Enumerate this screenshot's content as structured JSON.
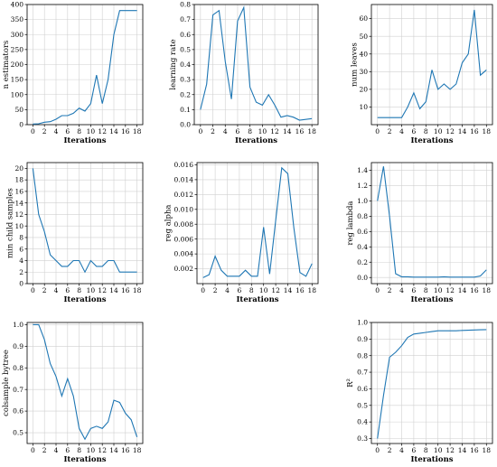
{
  "chart_data": [
    {
      "type": "line",
      "xlabel": "Iterations",
      "ylabel": "n estimators",
      "xlim": [
        -1,
        19
      ],
      "ylim": [
        0,
        400
      ],
      "xticks": [
        0,
        2,
        4,
        6,
        8,
        10,
        12,
        14,
        16,
        18
      ],
      "yticks": [
        0,
        50,
        100,
        150,
        200,
        250,
        300,
        350,
        400
      ],
      "x": [
        0,
        1,
        2,
        3,
        4,
        5,
        6,
        7,
        8,
        9,
        10,
        11,
        12,
        13,
        14,
        15,
        16,
        17,
        18
      ],
      "y": [
        2,
        3,
        8,
        10,
        18,
        30,
        30,
        38,
        55,
        45,
        70,
        165,
        70,
        150,
        300,
        380,
        380,
        380,
        380
      ],
      "grid": true
    },
    {
      "type": "line",
      "xlabel": "Iterations",
      "ylabel": "learning rate",
      "xlim": [
        -1,
        19
      ],
      "ylim": [
        0,
        0.8
      ],
      "xticks": [
        0,
        2,
        4,
        6,
        8,
        10,
        12,
        14,
        16,
        18
      ],
      "yticks": [
        0.0,
        0.1,
        0.2,
        0.3,
        0.4,
        0.5,
        0.6,
        0.7,
        0.8
      ],
      "ytick_labels": [
        "0.0",
        "0.1",
        "0.2",
        "0.3",
        "0.4",
        "0.5",
        "0.6",
        "0.7",
        "0.8"
      ],
      "x": [
        0,
        1,
        2,
        3,
        4,
        5,
        6,
        7,
        8,
        9,
        10,
        11,
        12,
        13,
        14,
        15,
        16,
        17,
        18
      ],
      "y": [
        0.1,
        0.27,
        0.73,
        0.76,
        0.42,
        0.17,
        0.69,
        0.78,
        0.25,
        0.15,
        0.13,
        0.2,
        0.13,
        0.05,
        0.06,
        0.05,
        0.03,
        0.035,
        0.04
      ],
      "grid": true
    },
    {
      "type": "line",
      "xlabel": "Iterations",
      "ylabel": "num leaves",
      "xlim": [
        -1,
        19
      ],
      "ylim": [
        0,
        68
      ],
      "xticks": [
        0,
        2,
        4,
        6,
        8,
        10,
        12,
        14,
        16,
        18
      ],
      "yticks": [
        10,
        20,
        30,
        40,
        50,
        60
      ],
      "x": [
        0,
        1,
        2,
        3,
        4,
        5,
        6,
        7,
        8,
        9,
        10,
        11,
        12,
        13,
        14,
        15,
        16,
        17,
        18
      ],
      "y": [
        4,
        4,
        4,
        4,
        4,
        10,
        18,
        9,
        13,
        31,
        20,
        23,
        20,
        23,
        35,
        40,
        65,
        28,
        31
      ],
      "grid": true
    },
    {
      "type": "line",
      "xlabel": "Iterations",
      "ylabel": "min child samples",
      "xlim": [
        -1,
        19
      ],
      "ylim": [
        0,
        21
      ],
      "xticks": [
        0,
        2,
        4,
        6,
        8,
        10,
        12,
        14,
        16,
        18
      ],
      "yticks": [
        0,
        2,
        4,
        6,
        8,
        10,
        12,
        14,
        16,
        18,
        20
      ],
      "x": [
        0,
        1,
        2,
        3,
        4,
        5,
        6,
        7,
        8,
        9,
        10,
        11,
        12,
        13,
        14,
        15,
        16,
        17,
        18
      ],
      "y": [
        20,
        12,
        9,
        5,
        4,
        3,
        3,
        4,
        4,
        2,
        4,
        3,
        3,
        4,
        4,
        2,
        2,
        2,
        2
      ],
      "grid": true
    },
    {
      "type": "line",
      "xlabel": "Iterations",
      "ylabel": "reg alpha",
      "xlim": [
        -1,
        19
      ],
      "ylim": [
        0,
        0.0163
      ],
      "xticks": [
        0,
        2,
        4,
        6,
        8,
        10,
        12,
        14,
        16,
        18
      ],
      "yticks": [
        0.002,
        0.004,
        0.006,
        0.008,
        0.01,
        0.012,
        0.014,
        0.016
      ],
      "ytick_labels": [
        "0.002",
        "0.004",
        "0.006",
        "0.008",
        "0.010",
        "0.012",
        "0.014",
        "0.016"
      ],
      "x": [
        0,
        1,
        2,
        3,
        4,
        5,
        6,
        7,
        8,
        9,
        10,
        11,
        12,
        13,
        14,
        15,
        16,
        17,
        18
      ],
      "y": [
        0.0008,
        0.0012,
        0.0037,
        0.0018,
        0.001,
        0.001,
        0.001,
        0.0018,
        0.001,
        0.001,
        0.0076,
        0.0013,
        0.0085,
        0.0156,
        0.0148,
        0.0075,
        0.0015,
        0.001,
        0.0027
      ],
      "grid": true
    },
    {
      "type": "line",
      "xlabel": "Iterations",
      "ylabel": "reg lambda",
      "xlim": [
        -1,
        19
      ],
      "ylim": [
        -0.08,
        1.5
      ],
      "xticks": [
        0,
        2,
        4,
        6,
        8,
        10,
        12,
        14,
        16,
        18
      ],
      "yticks": [
        0.0,
        0.2,
        0.4,
        0.6,
        0.8,
        1.0,
        1.2,
        1.4
      ],
      "ytick_labels": [
        "0.0",
        "0.2",
        "0.4",
        "0.6",
        "0.8",
        "1.0",
        "1.2",
        "1.4"
      ],
      "x": [
        0,
        1,
        2,
        3,
        4,
        5,
        6,
        7,
        8,
        9,
        10,
        11,
        12,
        13,
        14,
        15,
        16,
        17,
        18
      ],
      "y": [
        1.0,
        1.45,
        0.8,
        0.05,
        0.01,
        0.01,
        0.005,
        0.005,
        0.005,
        0.005,
        0.005,
        0.01,
        0.005,
        0.005,
        0.005,
        0.005,
        0.005,
        0.02,
        0.1
      ],
      "grid": true
    },
    {
      "type": "line",
      "xlabel": "Iterations",
      "ylabel": "colsample bytree",
      "xlim": [
        -1,
        19
      ],
      "ylim": [
        0.45,
        1.01
      ],
      "xticks": [
        0,
        2,
        4,
        6,
        8,
        10,
        12,
        14,
        16,
        18
      ],
      "yticks": [
        0.5,
        0.6,
        0.7,
        0.8,
        0.9,
        1.0
      ],
      "ytick_labels": [
        "0.5",
        "0.6",
        "0.7",
        "0.8",
        "0.9",
        "1.0"
      ],
      "x": [
        0,
        1,
        2,
        3,
        4,
        5,
        6,
        7,
        8,
        9,
        10,
        11,
        12,
        13,
        14,
        15,
        16,
        17,
        18
      ],
      "y": [
        1.0,
        1.0,
        0.93,
        0.82,
        0.76,
        0.67,
        0.75,
        0.67,
        0.52,
        0.47,
        0.52,
        0.53,
        0.52,
        0.55,
        0.65,
        0.64,
        0.59,
        0.56,
        0.48
      ],
      "grid": true
    },
    {
      "type": "line",
      "xlabel": "Iterations",
      "ylabel": "R²",
      "xlim": [
        -1,
        19
      ],
      "ylim": [
        0.27,
        1.0
      ],
      "xticks": [
        0,
        2,
        4,
        6,
        8,
        10,
        12,
        14,
        16,
        18
      ],
      "yticks": [
        0.3,
        0.4,
        0.5,
        0.6,
        0.7,
        0.8,
        0.9,
        1.0
      ],
      "ytick_labels": [
        "0.3",
        "0.4",
        "0.5",
        "0.6",
        "0.7",
        "0.8",
        "0.9",
        "1.0"
      ],
      "x": [
        0,
        1,
        2,
        3,
        4,
        5,
        6,
        7,
        8,
        9,
        10,
        11,
        12,
        13,
        14,
        15,
        16,
        17,
        18
      ],
      "y": [
        0.3,
        0.56,
        0.79,
        0.82,
        0.86,
        0.91,
        0.93,
        0.935,
        0.94,
        0.945,
        0.95,
        0.95,
        0.95,
        0.95,
        0.952,
        0.953,
        0.955,
        0.956,
        0.957
      ],
      "grid": true
    }
  ],
  "colors": {
    "series": "#1f77b4",
    "grid": "#d0d0d0",
    "axes": "#000000"
  }
}
